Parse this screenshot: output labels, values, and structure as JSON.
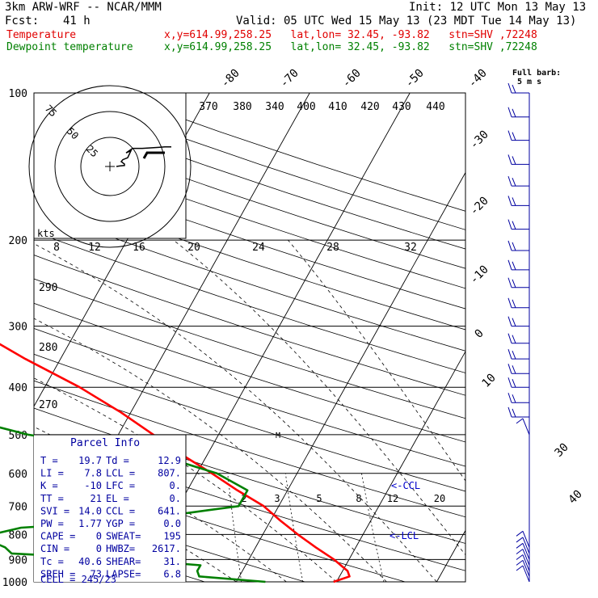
{
  "header": {
    "model": "3km ARW-WRF -- NCAR/MMM",
    "init": "Init: 12 UTC Mon 13 May 13",
    "fcst_label": "Fcst:",
    "fcst_value": "41 h",
    "valid": "Valid: 05 UTC Wed 15 May 13 (23 MDT Tue 14 May 13)",
    "temp_label": "Temperature",
    "dew_label": "Dewpoint temperature",
    "point_info": "x,y=614.99,258.25   lat,lon= 32.45, -93.82   stn=SHV ,72248",
    "colors": {
      "temperature": "#ff0000",
      "dewpoint": "#008000",
      "parcel": "#0000ff",
      "wind": "#0000a0"
    }
  },
  "chart_data": {
    "type": "line",
    "subtype": "skew-T log-P sounding",
    "pressure_levels_hPa": [
      100,
      200,
      300,
      400,
      500,
      600,
      700,
      800,
      900,
      1000
    ],
    "isotherm_labels_C": [
      -80,
      -70,
      -60,
      -50,
      -40,
      -30,
      -20,
      -10,
      0,
      10,
      20,
      30,
      40
    ],
    "theta_labels_K": [
      370,
      380,
      340,
      400,
      410,
      420,
      430,
      440
    ],
    "mixing_ratio_labels": [
      "2",
      "3",
      "5",
      "8",
      "12",
      "20"
    ],
    "theta_e_labels": [
      "290",
      "280",
      "270"
    ],
    "grid_labels": [
      "8",
      "12",
      "16",
      "20",
      "24",
      "28",
      "32"
    ],
    "series": [
      {
        "name": "Temperature",
        "color": "#ff0000",
        "points": [
          [
            1000,
            19.7
          ],
          [
            975,
            21.0
          ],
          [
            950,
            20.5
          ],
          [
            925,
            19.5
          ],
          [
            900,
            18.5
          ],
          [
            850,
            16.0
          ],
          [
            800,
            13.5
          ],
          [
            750,
            11.0
          ],
          [
            700,
            8.5
          ],
          [
            650,
            5.0
          ],
          [
            600,
            1.5
          ],
          [
            550,
            -2.5
          ],
          [
            500,
            -6.5
          ],
          [
            450,
            -11.0
          ],
          [
            400,
            -16.5
          ],
          [
            350,
            -23.5
          ],
          [
            300,
            -31.0
          ],
          [
            250,
            -40.0
          ],
          [
            200,
            -49.5
          ],
          [
            175,
            -54.5
          ],
          [
            150,
            -60.0
          ],
          [
            125,
            -65.0
          ],
          [
            110,
            -67.0
          ],
          [
            100,
            -67.5
          ]
        ]
      },
      {
        "name": "Dewpoint temperature",
        "color": "#008000",
        "points": [
          [
            1000,
            12.9
          ],
          [
            975,
            6.0
          ],
          [
            950,
            5.5
          ],
          [
            925,
            5.5
          ],
          [
            900,
            -2.0
          ],
          [
            875,
            -14.0
          ],
          [
            850,
            -15.0
          ],
          [
            810,
            -18.0
          ],
          [
            775,
            -14.5
          ],
          [
            750,
            -4.0
          ],
          [
            700,
            6.0
          ],
          [
            650,
            6.0
          ],
          [
            600,
            2.0
          ],
          [
            550,
            -5.0
          ],
          [
            500,
            -19.0
          ],
          [
            450,
            -29.0
          ],
          [
            400,
            -28.0
          ],
          [
            375,
            -46.0
          ],
          [
            350,
            -63.0
          ],
          [
            330,
            -35.0
          ],
          [
            310,
            -33.0
          ],
          [
            290,
            -38.0
          ],
          [
            270,
            -48.0
          ],
          [
            250,
            -50.0
          ],
          [
            230,
            -46.0
          ],
          [
            210,
            -44.0
          ],
          [
            190,
            -46.0
          ],
          [
            175,
            -52.0
          ],
          [
            160,
            -54.0
          ],
          [
            145,
            -57.0
          ],
          [
            130,
            -60.0
          ],
          [
            100,
            -63.0
          ]
        ]
      }
    ],
    "ccl_labels": [
      "<-CCL",
      "<-LCL"
    ],
    "lfc_marker": "M",
    "hodograph": {
      "rings_kt": [
        25,
        50,
        75
      ],
      "ring_labels": [
        "75",
        "50",
        "25"
      ],
      "units_label": "kts",
      "trace_uv_kt": [
        [
          0,
          0
        ],
        [
          2,
          1
        ],
        [
          5,
          2
        ],
        [
          5,
          5
        ],
        [
          3,
          10
        ],
        [
          4,
          14
        ],
        [
          7,
          18
        ],
        [
          9,
          24
        ],
        [
          6,
          28
        ],
        [
          10,
          29
        ],
        [
          16,
          29
        ],
        [
          26,
          31
        ],
        [
          30,
          32
        ],
        [
          34,
          32
        ]
      ]
    },
    "wind_barbs": {
      "label": "Full barb:",
      "label_units": "5 m s",
      "pressures_hPa": [
        100,
        112,
        125,
        140,
        155,
        170,
        190,
        210,
        230,
        250,
        275,
        300,
        325,
        350,
        375,
        400,
        430,
        460,
        500,
        850,
        875,
        900,
        925,
        950,
        975,
        1000
      ]
    }
  },
  "parcel_info": {
    "title": "Parcel Info",
    "rows": [
      {
        "k1": "T   =",
        "v1": "19.7",
        "k2": "Td =",
        "v2": "12.9"
      },
      {
        "k1": "LI  =",
        "v1": "7.8",
        "k2": "LCL =",
        "v2": "807."
      },
      {
        "k1": "K   =",
        "v1": "-10",
        "k2": "LFC =",
        "v2": "0."
      },
      {
        "k1": "TT  =",
        "v1": "21",
        "k2": "EL  =",
        "v2": "0."
      },
      {
        "k1": "SVI =",
        "v1": "14.0",
        "k2": "CCL =",
        "v2": "641."
      },
      {
        "k1": "PW  =",
        "v1": "1.77",
        "k2": "YGP =",
        "v2": "0.0"
      },
      {
        "k1": "CAPE =",
        "v1": "0",
        "k2": "SWEAT=",
        "v2": "195"
      },
      {
        "k1": "CIN  =",
        "v1": "0",
        "k2": "HWBZ=",
        "v2": "2617."
      },
      {
        "k1": "Tc   =",
        "v1": "40.6",
        "k2": "SHEAR=",
        "v2": "31."
      },
      {
        "k1": "SREH =",
        "v1": "73",
        "k2": "LAPSE=",
        "v2": "6.8"
      }
    ],
    "cell": "CELL = 245/23"
  }
}
